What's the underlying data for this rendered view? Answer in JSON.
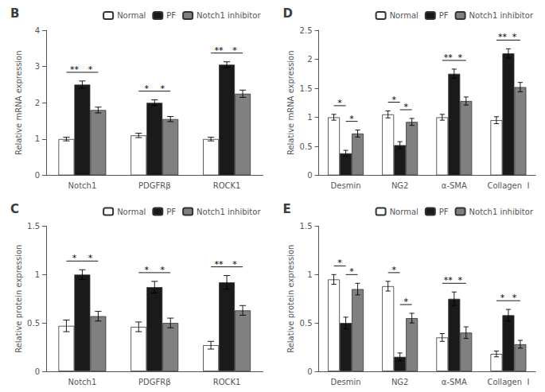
{
  "chart_data": [
    {
      "type": "bar",
      "title": "B",
      "ylabel": "Relative mRNA expression",
      "categories": [
        "Notch1",
        "PDGFRβ",
        "ROCK1"
      ],
      "series": [
        {
          "name": "Normal",
          "color": "#ffffff",
          "values": [
            1.0,
            1.1,
            1.0
          ],
          "errors": [
            0.05,
            0.06,
            0.05
          ]
        },
        {
          "name": "PF",
          "color": "#1a1a1a",
          "values": [
            2.5,
            2.0,
            3.05
          ],
          "errors": [
            0.1,
            0.08,
            0.08
          ]
        },
        {
          "name": "Notch1 inhibitor",
          "color": "#808080",
          "values": [
            1.8,
            1.55,
            2.25
          ],
          "errors": [
            0.08,
            0.07,
            0.1
          ]
        }
      ],
      "ylim": [
        0,
        4
      ],
      "yticks": [
        0,
        1,
        2,
        3,
        4
      ],
      "grid": false,
      "legend": "upper right",
      "annotations": [
        {
          "category": "Notch1",
          "between": [
            "Normal",
            "PF"
          ],
          "text": "**"
        },
        {
          "category": "Notch1",
          "between": [
            "PF",
            "Notch1 inhibitor"
          ],
          "text": "*"
        },
        {
          "category": "PDGFRβ",
          "between": [
            "Normal",
            "PF"
          ],
          "text": "*"
        },
        {
          "category": "PDGFRβ",
          "between": [
            "PF",
            "Notch1 inhibitor"
          ],
          "text": "*"
        },
        {
          "category": "ROCK1",
          "between": [
            "Normal",
            "PF"
          ],
          "text": "**"
        },
        {
          "category": "ROCK1",
          "between": [
            "PF",
            "Notch1 inhibitor"
          ],
          "text": "*"
        }
      ]
    },
    {
      "type": "bar",
      "title": "D",
      "ylabel": "Relative mRNA expression",
      "categories": [
        "Desmin",
        "NG2",
        "α-SMA",
        "Collagen  I"
      ],
      "series": [
        {
          "name": "Normal",
          "color": "#ffffff",
          "values": [
            1.0,
            1.05,
            1.0,
            0.95
          ],
          "errors": [
            0.05,
            0.06,
            0.05,
            0.06
          ]
        },
        {
          "name": "PF",
          "color": "#1a1a1a",
          "values": [
            0.38,
            0.52,
            1.75,
            2.1
          ],
          "errors": [
            0.05,
            0.06,
            0.08,
            0.08
          ]
        },
        {
          "name": "Notch1 inhibitor",
          "color": "#808080",
          "values": [
            0.72,
            0.92,
            1.28,
            1.52
          ],
          "errors": [
            0.06,
            0.06,
            0.07,
            0.08
          ]
        }
      ],
      "ylim": [
        0,
        2.5
      ],
      "yticks": [
        0,
        0.5,
        1,
        1.5,
        2,
        2.5
      ],
      "grid": false,
      "legend": "upper right",
      "annotations": [
        {
          "category": "Desmin",
          "between": [
            "Normal",
            "PF"
          ],
          "text": "*"
        },
        {
          "category": "Desmin",
          "between": [
            "PF",
            "Notch1 inhibitor"
          ],
          "text": "*"
        },
        {
          "category": "NG2",
          "between": [
            "Normal",
            "PF"
          ],
          "text": "*"
        },
        {
          "category": "NG2",
          "between": [
            "PF",
            "Notch1 inhibitor"
          ],
          "text": "*"
        },
        {
          "category": "α-SMA",
          "between": [
            "Normal",
            "PF"
          ],
          "text": "**"
        },
        {
          "category": "α-SMA",
          "between": [
            "PF",
            "Notch1 inhibitor"
          ],
          "text": "*"
        },
        {
          "category": "Collagen  I",
          "between": [
            "Normal",
            "PF"
          ],
          "text": "**"
        },
        {
          "category": "Collagen  I",
          "between": [
            "PF",
            "Notch1 inhibitor"
          ],
          "text": "*"
        }
      ]
    },
    {
      "type": "bar",
      "title": "C",
      "ylabel": "Relative protein expression",
      "categories": [
        "Notch1",
        "PDGFRβ",
        "ROCK1"
      ],
      "series": [
        {
          "name": "Normal",
          "color": "#ffffff",
          "values": [
            0.47,
            0.46,
            0.27
          ],
          "errors": [
            0.06,
            0.05,
            0.04
          ]
        },
        {
          "name": "PF",
          "color": "#1a1a1a",
          "values": [
            1.0,
            0.87,
            0.92
          ],
          "errors": [
            0.05,
            0.06,
            0.07
          ]
        },
        {
          "name": "Notch1 inhibitor",
          "color": "#808080",
          "values": [
            0.57,
            0.5,
            0.63
          ],
          "errors": [
            0.05,
            0.05,
            0.05
          ]
        }
      ],
      "ylim": [
        0,
        1.5
      ],
      "yticks": [
        0,
        0.5,
        1,
        1.5
      ],
      "grid": false,
      "legend": "upper right",
      "annotations": [
        {
          "category": "Notch1",
          "between": [
            "Normal",
            "PF"
          ],
          "text": "*"
        },
        {
          "category": "Notch1",
          "between": [
            "PF",
            "Notch1 inhibitor"
          ],
          "text": "*"
        },
        {
          "category": "PDGFRβ",
          "between": [
            "Normal",
            "PF"
          ],
          "text": "*"
        },
        {
          "category": "PDGFRβ",
          "between": [
            "PF",
            "Notch1 inhibitor"
          ],
          "text": "*"
        },
        {
          "category": "ROCK1",
          "between": [
            "Normal",
            "PF"
          ],
          "text": "**"
        },
        {
          "category": "ROCK1",
          "between": [
            "PF",
            "Notch1 inhibitor"
          ],
          "text": "*"
        }
      ]
    },
    {
      "type": "bar",
      "title": "E",
      "ylabel": "Relative protein expression",
      "categories": [
        "Desmin",
        "NG2",
        "α-SMA",
        "Collagen  I"
      ],
      "series": [
        {
          "name": "Normal",
          "color": "#ffffff",
          "values": [
            0.95,
            0.88,
            0.35,
            0.18
          ],
          "errors": [
            0.05,
            0.05,
            0.04,
            0.03
          ]
        },
        {
          "name": "PF",
          "color": "#1a1a1a",
          "values": [
            0.5,
            0.15,
            0.75,
            0.58
          ],
          "errors": [
            0.06,
            0.04,
            0.07,
            0.06
          ]
        },
        {
          "name": "Notch1 inhibitor",
          "color": "#808080",
          "values": [
            0.85,
            0.55,
            0.4,
            0.28
          ],
          "errors": [
            0.06,
            0.05,
            0.06,
            0.04
          ]
        }
      ],
      "ylim": [
        0,
        1.5
      ],
      "yticks": [
        0,
        0.5,
        1,
        1.5
      ],
      "grid": false,
      "legend": "upper right",
      "annotations": [
        {
          "category": "Desmin",
          "between": [
            "Normal",
            "PF"
          ],
          "text": "*"
        },
        {
          "category": "Desmin",
          "between": [
            "PF",
            "Notch1 inhibitor"
          ],
          "text": "*"
        },
        {
          "category": "NG2",
          "between": [
            "Normal",
            "PF"
          ],
          "text": "*"
        },
        {
          "category": "NG2",
          "between": [
            "PF",
            "Notch1 inhibitor"
          ],
          "text": "*"
        },
        {
          "category": "α-SMA",
          "between": [
            "Normal",
            "PF"
          ],
          "text": "**"
        },
        {
          "category": "α-SMA",
          "between": [
            "PF",
            "Notch1 inhibitor"
          ],
          "text": "*"
        },
        {
          "category": "Collagen  I",
          "between": [
            "Normal",
            "PF"
          ],
          "text": "*"
        },
        {
          "category": "Collagen  I",
          "between": [
            "PF",
            "Notch1 inhibitor"
          ],
          "text": "*"
        }
      ]
    }
  ]
}
